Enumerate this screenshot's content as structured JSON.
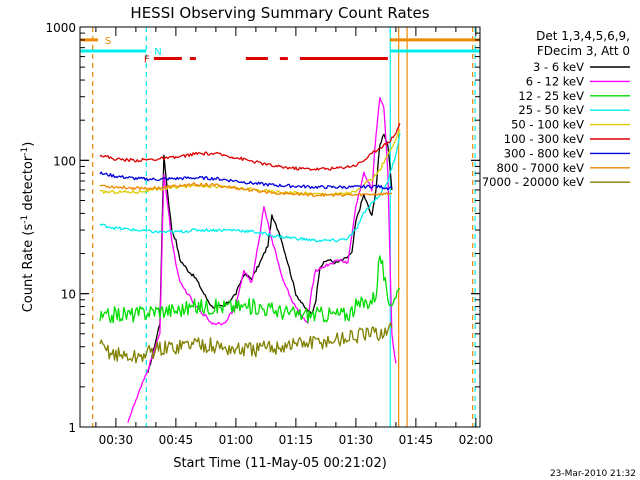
{
  "chart_data": {
    "type": "line",
    "title": "HESSI Observing Summary Count Rates",
    "xlabel": "Start Time (11-May-05 00:21:02)",
    "ylabel_main": "Count Rate (s",
    "ylabel_sup1": "-1",
    "ylabel_mid": " detector",
    "ylabel_sup2": "-1",
    "ylabel_end": ")",
    "yscale": "log",
    "ylim": [
      1,
      1000
    ],
    "y_ticks": [
      "1",
      "10",
      "100",
      "1000"
    ],
    "x_ticks": [
      "00:30",
      "00:45",
      "01:00",
      "01:15",
      "01:30",
      "01:45",
      "02:00"
    ],
    "x_range_minutes": [
      21.03,
      121.03
    ],
    "legend_header": [
      "Det 1,3,4,5,6,9,",
      "FDecim 3, Att 0"
    ],
    "series": [
      {
        "name": "3 - 6 keV",
        "color": "#000000",
        "points": [
          [
            38,
            2.5
          ],
          [
            41,
            6
          ],
          [
            42,
            110
          ],
          [
            43,
            55
          ],
          [
            44,
            30
          ],
          [
            45,
            25
          ],
          [
            46,
            18
          ],
          [
            48,
            15
          ],
          [
            50,
            13
          ],
          [
            52,
            10
          ],
          [
            54,
            8
          ],
          [
            57,
            8
          ],
          [
            60,
            10
          ],
          [
            62,
            14
          ],
          [
            64,
            13
          ],
          [
            66,
            17
          ],
          [
            68,
            23
          ],
          [
            69,
            38
          ],
          [
            71,
            28
          ],
          [
            73,
            17
          ],
          [
            75,
            10
          ],
          [
            77,
            8
          ],
          [
            79,
            7
          ],
          [
            80,
            9
          ],
          [
            81,
            16
          ],
          [
            83,
            18
          ],
          [
            85,
            17
          ],
          [
            87,
            18
          ],
          [
            89,
            20
          ],
          [
            90,
            35
          ],
          [
            92,
            55
          ],
          [
            94,
            38
          ],
          [
            95,
            60
          ],
          [
            96,
            130
          ],
          [
            97,
            160
          ],
          [
            98,
            130
          ],
          [
            99,
            60
          ]
        ]
      },
      {
        "name": "6 - 12 keV",
        "color": "#ff00ff",
        "points": [
          [
            33,
            1.1
          ],
          [
            38,
            2.7
          ],
          [
            41,
            5
          ],
          [
            42,
            80
          ],
          [
            43,
            45
          ],
          [
            44,
            25
          ],
          [
            45,
            17
          ],
          [
            46,
            12
          ],
          [
            48,
            10
          ],
          [
            50,
            8
          ],
          [
            52,
            7
          ],
          [
            54,
            6
          ],
          [
            57,
            6
          ],
          [
            60,
            8
          ],
          [
            62,
            15
          ],
          [
            64,
            12
          ],
          [
            66,
            28
          ],
          [
            67,
            45
          ],
          [
            68,
            35
          ],
          [
            69,
            25
          ],
          [
            70,
            20
          ],
          [
            72,
            12
          ],
          [
            74,
            9
          ],
          [
            76,
            7
          ],
          [
            78,
            6
          ],
          [
            79,
            11
          ],
          [
            80,
            15
          ],
          [
            82,
            16
          ],
          [
            84,
            17
          ],
          [
            86,
            18
          ],
          [
            88,
            17
          ],
          [
            90,
            45
          ],
          [
            92,
            80
          ],
          [
            94,
            60
          ],
          [
            95,
            150
          ],
          [
            96,
            300
          ],
          [
            97,
            250
          ],
          [
            98,
            80
          ],
          [
            99,
            5
          ],
          [
            100,
            3
          ]
        ]
      },
      {
        "name": "12 - 25 keV",
        "color": "#00dd00",
        "points": [
          [
            26,
            6.5
          ],
          [
            30,
            7
          ],
          [
            35,
            7
          ],
          [
            40,
            7.5
          ],
          [
            45,
            7.5
          ],
          [
            50,
            8
          ],
          [
            55,
            8
          ],
          [
            60,
            8
          ],
          [
            65,
            8
          ],
          [
            70,
            7.5
          ],
          [
            75,
            7
          ],
          [
            80,
            7
          ],
          [
            85,
            7
          ],
          [
            88,
            7
          ],
          [
            90,
            8
          ],
          [
            92,
            8.5
          ],
          [
            94,
            9
          ],
          [
            95,
            10
          ],
          [
            96,
            20
          ],
          [
            97,
            14
          ],
          [
            98,
            8
          ],
          [
            99,
            9
          ],
          [
            100,
            10
          ],
          [
            101,
            11
          ]
        ]
      },
      {
        "name": "25 - 50 keV",
        "color": "#00eeee",
        "points": [
          [
            26,
            33
          ],
          [
            30,
            31
          ],
          [
            35,
            30
          ],
          [
            40,
            29
          ],
          [
            45,
            29
          ],
          [
            50,
            30
          ],
          [
            55,
            30
          ],
          [
            60,
            30
          ],
          [
            65,
            29
          ],
          [
            70,
            27
          ],
          [
            75,
            26
          ],
          [
            80,
            25
          ],
          [
            85,
            25
          ],
          [
            88,
            26
          ],
          [
            90,
            30
          ],
          [
            92,
            40
          ],
          [
            94,
            48
          ],
          [
            96,
            55
          ],
          [
            98,
            70
          ],
          [
            100,
            110
          ],
          [
            101,
            160
          ]
        ]
      },
      {
        "name": "50 - 100 keV",
        "color": "#ddcc00",
        "points": [
          [
            26,
            58
          ],
          [
            30,
            58
          ],
          [
            35,
            58
          ],
          [
            40,
            60
          ],
          [
            45,
            63
          ],
          [
            50,
            65
          ],
          [
            55,
            64
          ],
          [
            60,
            62
          ],
          [
            65,
            60
          ],
          [
            70,
            58
          ],
          [
            75,
            57
          ],
          [
            80,
            56
          ],
          [
            85,
            56
          ],
          [
            90,
            58
          ],
          [
            92,
            65
          ],
          [
            94,
            72
          ],
          [
            96,
            85
          ],
          [
            98,
            110
          ],
          [
            100,
            140
          ],
          [
            101,
            170
          ]
        ]
      },
      {
        "name": "100 - 300 keV",
        "color": "#dd0000",
        "points": [
          [
            26,
            110
          ],
          [
            30,
            102
          ],
          [
            35,
            100
          ],
          [
            40,
            102
          ],
          [
            45,
            105
          ],
          [
            50,
            112
          ],
          [
            55,
            112
          ],
          [
            60,
            105
          ],
          [
            65,
            97
          ],
          [
            70,
            90
          ],
          [
            75,
            87
          ],
          [
            80,
            86
          ],
          [
            85,
            87
          ],
          [
            90,
            92
          ],
          [
            92,
            100
          ],
          [
            94,
            112
          ],
          [
            96,
            125
          ],
          [
            98,
            135
          ],
          [
            100,
            160
          ],
          [
            101,
            190
          ]
        ]
      },
      {
        "name": "300 - 800 keV",
        "color": "#0000dd",
        "points": [
          [
            26,
            80
          ],
          [
            30,
            76
          ],
          [
            35,
            73
          ],
          [
            40,
            72
          ],
          [
            45,
            73
          ],
          [
            50,
            74
          ],
          [
            55,
            73
          ],
          [
            60,
            70
          ],
          [
            65,
            67
          ],
          [
            70,
            65
          ],
          [
            75,
            64
          ],
          [
            80,
            63
          ],
          [
            85,
            63
          ],
          [
            90,
            63
          ],
          [
            95,
            64
          ],
          [
            98,
            62
          ],
          [
            99,
            63
          ]
        ]
      },
      {
        "name": "800 - 7000 keV",
        "color": "#ee8800",
        "points": [
          [
            26,
            65
          ],
          [
            30,
            63
          ],
          [
            35,
            62
          ],
          [
            40,
            62
          ],
          [
            45,
            64
          ],
          [
            50,
            66
          ],
          [
            55,
            65
          ],
          [
            60,
            62
          ],
          [
            65,
            59
          ],
          [
            70,
            57
          ],
          [
            75,
            56
          ],
          [
            80,
            55
          ],
          [
            85,
            55
          ],
          [
            90,
            55
          ],
          [
            95,
            56
          ],
          [
            98,
            56
          ],
          [
            99,
            57
          ]
        ]
      },
      {
        "name": "7000 - 20000 keV",
        "color": "#808000",
        "points": [
          [
            26,
            4
          ],
          [
            30,
            3.5
          ],
          [
            35,
            3.3
          ],
          [
            40,
            3.8
          ],
          [
            45,
            4
          ],
          [
            50,
            4.3
          ],
          [
            55,
            4
          ],
          [
            60,
            3.8
          ],
          [
            65,
            3.8
          ],
          [
            70,
            4
          ],
          [
            75,
            4.2
          ],
          [
            80,
            4.3
          ],
          [
            85,
            4.5
          ],
          [
            90,
            4.8
          ],
          [
            95,
            5
          ],
          [
            98,
            5.2
          ],
          [
            99,
            5.5
          ]
        ]
      }
    ],
    "flags": [
      {
        "label": "S",
        "color": "#ee8800",
        "segments": [
          [
            21.2,
            25.5
          ],
          [
            98.5,
            121.03
          ]
        ],
        "level": 800
      },
      {
        "label": "N",
        "color": "#00eeee",
        "segments": [
          [
            21.2,
            37.6
          ],
          [
            98.5,
            121.03
          ]
        ],
        "level": 660
      },
      {
        "label": "F",
        "color": "#dd0000",
        "segments": [
          [
            39.5,
            46.5
          ],
          [
            48.5,
            50
          ],
          [
            62.5,
            68
          ],
          [
            71,
            73
          ],
          [
            76,
            98
          ]
        ],
        "level": 580
      }
    ],
    "vlines": [
      {
        "minute": 24.2,
        "color": "#ee8800",
        "style": "dashed"
      },
      {
        "minute": 37.6,
        "color": "#00eeee",
        "style": "dashed"
      },
      {
        "minute": 98.6,
        "color": "#00eeee",
        "style": "solid"
      },
      {
        "minute": 100.7,
        "color": "#ee8800",
        "style": "solid"
      },
      {
        "minute": 102.8,
        "color": "#ee8800",
        "style": "solid"
      },
      {
        "minute": 119.2,
        "color": "#ee8800",
        "style": "dashed"
      },
      {
        "minute": 119.8,
        "color": "#00eeee",
        "style": "dashed"
      }
    ]
  },
  "footer": {
    "timestamp": "23-Mar-2010 21:32"
  }
}
